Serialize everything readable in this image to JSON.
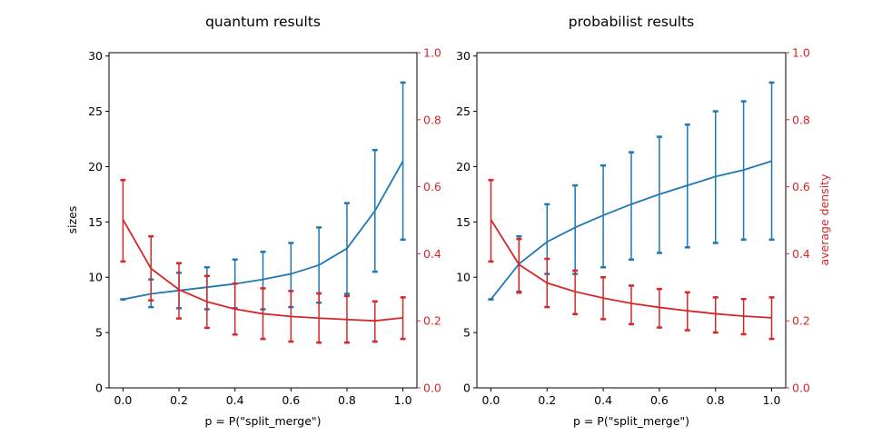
{
  "chart_data": [
    {
      "type": "line",
      "title": "quantum results",
      "xlabel": "p = P(\"split_merge\")",
      "ylabel": "sizes",
      "ylabel_right": "",
      "xlim": [
        -0.05,
        1.05
      ],
      "ylim": [
        0,
        30.3
      ],
      "ylim_right": [
        0,
        1.0
      ],
      "x_ticks": [
        "0.0",
        "0.2",
        "0.4",
        "0.6",
        "0.8",
        "1.0"
      ],
      "y_ticks": [
        "0",
        "5",
        "10",
        "15",
        "20",
        "25",
        "30"
      ],
      "y_ticks_right": [
        "0.0",
        "0.2",
        "0.4",
        "0.6",
        "0.8",
        "1.0"
      ],
      "x": [
        0.0,
        0.1,
        0.2,
        0.3,
        0.4,
        0.5,
        0.6,
        0.7,
        0.8,
        0.9,
        1.0
      ],
      "series": [
        {
          "axis": "left",
          "color": "#1f77b4",
          "values": [
            8.0,
            8.5,
            8.8,
            9.1,
            9.4,
            9.8,
            10.3,
            11.1,
            12.6,
            16.0,
            20.5
          ],
          "err_low": [
            8.0,
            7.3,
            7.2,
            7.1,
            7.2,
            7.1,
            7.3,
            7.7,
            8.5,
            10.5,
            13.4
          ],
          "err_high": [
            8.0,
            9.8,
            10.4,
            10.9,
            11.6,
            12.3,
            13.1,
            14.5,
            16.7,
            21.5,
            27.6
          ]
        },
        {
          "axis": "right",
          "color": "#d62728",
          "values": [
            0.502,
            0.356,
            0.293,
            0.257,
            0.235,
            0.221,
            0.213,
            0.208,
            0.204,
            0.2,
            0.209
          ],
          "err_low": [
            0.377,
            0.261,
            0.207,
            0.179,
            0.159,
            0.146,
            0.138,
            0.135,
            0.135,
            0.138,
            0.146
          ],
          "err_high": [
            0.62,
            0.452,
            0.372,
            0.334,
            0.311,
            0.297,
            0.289,
            0.282,
            0.274,
            0.258,
            0.27
          ]
        }
      ]
    },
    {
      "type": "line",
      "title": "probabilist results",
      "xlabel": "p = P(\"split_merge\")",
      "ylabel": "",
      "ylabel_right": "average density",
      "xlim": [
        -0.05,
        1.05
      ],
      "ylim": [
        0,
        30.3
      ],
      "ylim_right": [
        0,
        1.0
      ],
      "x_ticks": [
        "0.0",
        "0.2",
        "0.4",
        "0.6",
        "0.8",
        "1.0"
      ],
      "y_ticks": [
        "0",
        "5",
        "10",
        "15",
        "20",
        "25",
        "30"
      ],
      "y_ticks_right": [
        "0.0",
        "0.2",
        "0.4",
        "0.6",
        "0.8",
        "1.0"
      ],
      "x": [
        0.0,
        0.1,
        0.2,
        0.3,
        0.4,
        0.5,
        0.6,
        0.7,
        0.8,
        0.9,
        1.0
      ],
      "series": [
        {
          "axis": "left",
          "color": "#1f77b4",
          "values": [
            8.0,
            11.2,
            13.2,
            14.5,
            15.6,
            16.6,
            17.5,
            18.3,
            19.1,
            19.7,
            20.5
          ],
          "err_low": [
            8.0,
            8.7,
            10.3,
            10.3,
            10.9,
            11.6,
            12.2,
            12.7,
            13.1,
            13.4,
            13.4
          ],
          "err_high": [
            8.0,
            13.7,
            16.6,
            18.3,
            20.1,
            21.3,
            22.7,
            23.8,
            25.0,
            25.9,
            27.6
          ]
        },
        {
          "axis": "right",
          "color": "#d62728",
          "values": [
            0.502,
            0.368,
            0.313,
            0.287,
            0.268,
            0.252,
            0.24,
            0.23,
            0.221,
            0.214,
            0.209
          ],
          "err_low": [
            0.377,
            0.284,
            0.241,
            0.22,
            0.205,
            0.19,
            0.18,
            0.172,
            0.165,
            0.16,
            0.146
          ],
          "err_high": [
            0.62,
            0.444,
            0.385,
            0.35,
            0.33,
            0.305,
            0.295,
            0.285,
            0.27,
            0.265,
            0.27
          ]
        }
      ]
    }
  ]
}
